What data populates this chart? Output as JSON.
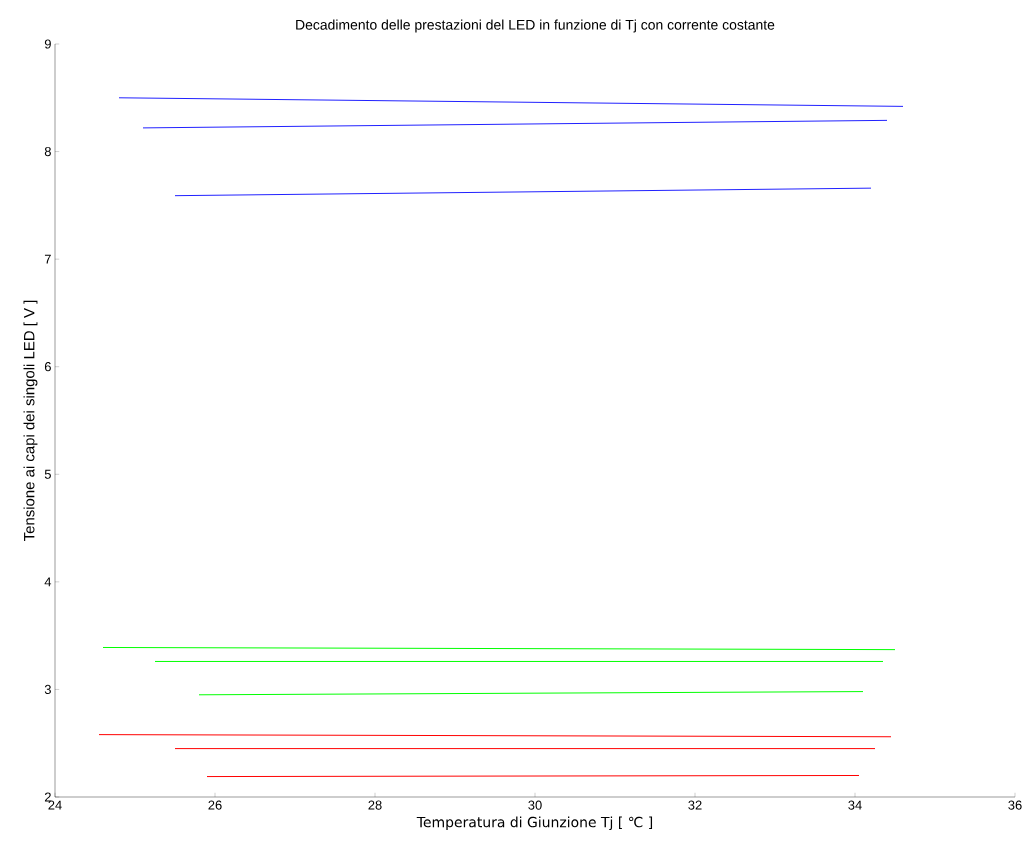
{
  "chart_data": {
    "type": "line",
    "title": "Decadimento delle prestazioni del LED in funzione di Tj con corrente costante",
    "xlabel": "Temperatura di Giunzione Tj [ ℃ ]",
    "ylabel": "Tensione ai capi dei singoli LED [ V ]",
    "xlim": [
      24,
      36
    ],
    "ylim": [
      2,
      9
    ],
    "xticks": [
      24,
      26,
      28,
      30,
      32,
      34,
      36
    ],
    "yticks": [
      2,
      3,
      4,
      5,
      6,
      7,
      8,
      9
    ],
    "marker": "none",
    "line_style": "solid",
    "series": [
      {
        "color": "#2020ff",
        "x": [
          24.8,
          34.6
        ],
        "values": [
          8.5,
          8.42
        ]
      },
      {
        "color": "#2020ff",
        "x": [
          25.1,
          34.4
        ],
        "values": [
          8.22,
          8.29
        ]
      },
      {
        "color": "#2020ff",
        "x": [
          25.5,
          34.2
        ],
        "values": [
          7.59,
          7.66
        ]
      },
      {
        "color": "#00ff00",
        "x": [
          24.6,
          34.5
        ],
        "values": [
          3.39,
          3.37
        ]
      },
      {
        "color": "#00ff00",
        "x": [
          25.25,
          34.35
        ],
        "values": [
          3.26,
          3.26
        ]
      },
      {
        "color": "#00ff00",
        "x": [
          25.8,
          34.1
        ],
        "values": [
          2.95,
          2.98
        ]
      },
      {
        "color": "#ff0000",
        "x": [
          24.55,
          34.45
        ],
        "values": [
          2.58,
          2.56
        ]
      },
      {
        "color": "#ff0000",
        "x": [
          25.5,
          34.25
        ],
        "values": [
          2.45,
          2.45
        ]
      },
      {
        "color": "#ff0000",
        "x": [
          25.9,
          34.05
        ],
        "values": [
          2.19,
          2.2
        ]
      }
    ]
  }
}
